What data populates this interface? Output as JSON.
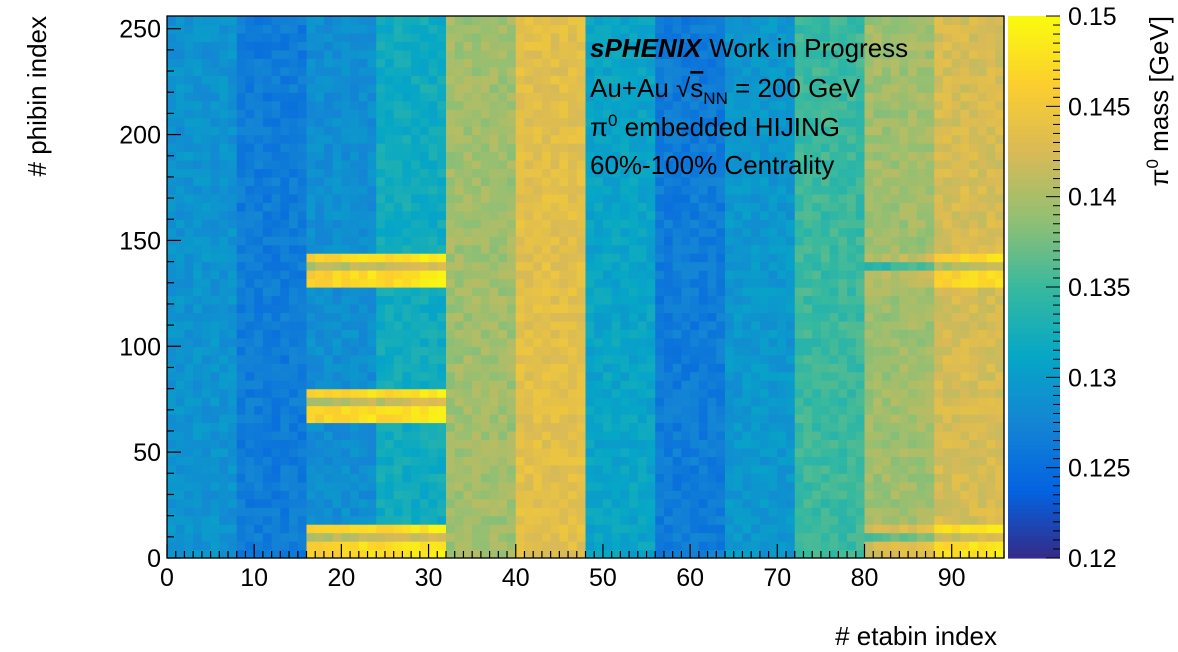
{
  "chart_data": {
    "type": "heatmap",
    "xlabel": "# etabin index",
    "ylabel": "# phibin index",
    "zlabel": {
      "prefix": "π",
      "sup": "0",
      "rest": " mass [GeV]"
    },
    "xlim": [
      0,
      96
    ],
    "ylim": [
      0,
      256
    ],
    "zlim": [
      0.12,
      0.15
    ],
    "x_ticks": [
      0,
      10,
      20,
      30,
      40,
      50,
      60,
      70,
      80,
      90
    ],
    "y_ticks": [
      0,
      50,
      100,
      150,
      200,
      250
    ],
    "z_ticks": [
      0.12,
      0.125,
      0.13,
      0.135,
      0.14,
      0.145,
      0.15
    ],
    "x_tick_labels": [
      "0",
      "10",
      "20",
      "30",
      "40",
      "50",
      "60",
      "70",
      "80",
      "90"
    ],
    "y_tick_labels": [
      "0",
      "50",
      "100",
      "150",
      "200",
      "250"
    ],
    "z_tick_labels": [
      "0.12",
      "0.125",
      "0.13",
      "0.135",
      "0.14",
      "0.145",
      "0.15"
    ],
    "colormap": [
      "#352a87",
      "#0363e1",
      "#1485d4",
      "#06a7c6",
      "#38b99e",
      "#92bf73",
      "#d9ba56",
      "#fcce2e",
      "#f9fb0e"
    ],
    "column_blocks": [
      {
        "eta_range": [
          0,
          8
        ],
        "mass": 0.129
      },
      {
        "eta_range": [
          8,
          16
        ],
        "mass": 0.1265
      },
      {
        "eta_range": [
          16,
          24
        ],
        "mass": 0.1285
      },
      {
        "eta_range": [
          24,
          32
        ],
        "mass": 0.132
      },
      {
        "eta_range": [
          32,
          40
        ],
        "mass": 0.1395
      },
      {
        "eta_range": [
          40,
          48
        ],
        "mass": 0.1435
      },
      {
        "eta_range": [
          48,
          56
        ],
        "mass": 0.131
      },
      {
        "eta_range": [
          56,
          64
        ],
        "mass": 0.1265
      },
      {
        "eta_range": [
          64,
          72
        ],
        "mass": 0.1295
      },
      {
        "eta_range": [
          72,
          80
        ],
        "mass": 0.135
      },
      {
        "eta_range": [
          80,
          88
        ],
        "mass": 0.1395
      },
      {
        "eta_range": [
          88,
          96
        ],
        "mass": 0.1425
      }
    ],
    "hot_spots": [
      {
        "eta_range": [
          16,
          24
        ],
        "phi_range": [
          128,
          144
        ],
        "mass": 0.146
      },
      {
        "eta_range": [
          24,
          32
        ],
        "phi_range": [
          128,
          144
        ],
        "mass": 0.147
      },
      {
        "eta_range": [
          16,
          24
        ],
        "phi_range": [
          64,
          80
        ],
        "mass": 0.146
      },
      {
        "eta_range": [
          24,
          32
        ],
        "phi_range": [
          64,
          80
        ],
        "mass": 0.147
      },
      {
        "eta_range": [
          16,
          24
        ],
        "phi_range": [
          0,
          16
        ],
        "mass": 0.146
      },
      {
        "eta_range": [
          24,
          32
        ],
        "phi_range": [
          0,
          16
        ],
        "mass": 0.147
      },
      {
        "eta_range": [
          80,
          88
        ],
        "phi_range": [
          128,
          144
        ],
        "mass": 0.14
      },
      {
        "eta_range": [
          88,
          96
        ],
        "phi_range": [
          128,
          144
        ],
        "mass": 0.146
      },
      {
        "eta_range": [
          80,
          88
        ],
        "phi_range": [
          0,
          16
        ],
        "mass": 0.142
      },
      {
        "eta_range": [
          88,
          96
        ],
        "phi_range": [
          0,
          16
        ],
        "mass": 0.147
      }
    ]
  },
  "legend": {
    "experiment": "sPHENIX",
    "status": "Work in Progress",
    "system_prefix": "Au+Au ",
    "sqrt_symbol": "√",
    "s_letter": "s",
    "nn_subscript": "NN",
    "energy_suffix": " = 200 GeV",
    "embed_pi": "π",
    "embed_sup": "0",
    "embed_rest": " embedded HIJING",
    "centrality": "60%-100% Centrality"
  }
}
